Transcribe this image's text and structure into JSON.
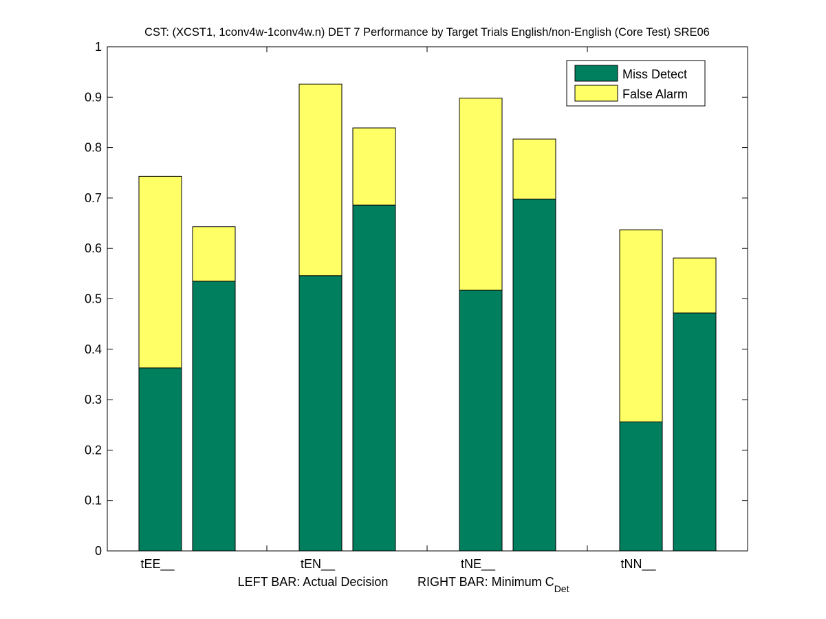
{
  "chart_data": {
    "type": "bar",
    "stacked": true,
    "title": "CST: (XCST1, 1conv4w-1conv4w.n) DET 7 Performance by Target Trials English/non-English (Core Test) SRE06",
    "xlabel_left": "LEFT BAR: Actual Decision",
    "xlabel_right": "RIGHT BAR: Minimum C",
    "xlabel_right_sub": "Det",
    "ylabel": "",
    "ylim": [
      0,
      1
    ],
    "yticks": [
      "0",
      "0.1",
      "0.2",
      "0.3",
      "0.4",
      "0.5",
      "0.6",
      "0.7",
      "0.8",
      "0.9",
      "1"
    ],
    "categories": [
      "tEE__",
      "tEN__",
      "tNE__",
      "tNN__"
    ],
    "bar_labels": [
      "Actual Decision",
      "Minimum CDet"
    ],
    "series": [
      {
        "name": "Miss Detect",
        "color": "#007f5f",
        "actual": [
          0.363,
          0.546,
          0.517,
          0.256
        ],
        "minimum": [
          0.535,
          0.686,
          0.698,
          0.472
        ]
      },
      {
        "name": "False Alarm",
        "color": "#ffff66",
        "actual": [
          0.38,
          0.38,
          0.381,
          0.381
        ],
        "minimum": [
          0.108,
          0.153,
          0.119,
          0.109
        ]
      }
    ],
    "legend": "top-right",
    "grid": false
  }
}
